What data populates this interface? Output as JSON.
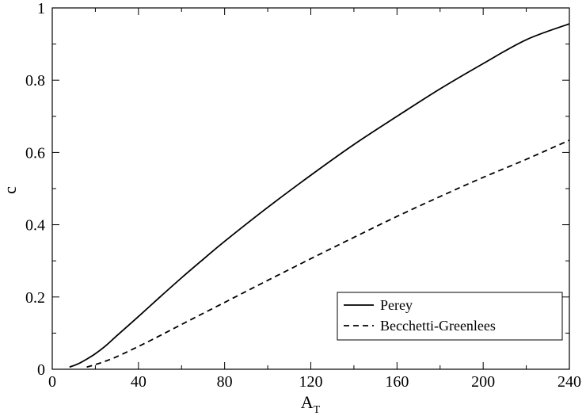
{
  "chart_data": {
    "type": "line",
    "xlabel": "A",
    "xlabel_subscript": "T",
    "ylabel": "c",
    "xlim": [
      0,
      240
    ],
    "ylim": [
      0,
      1
    ],
    "xticks": [
      0,
      40,
      80,
      120,
      160,
      200,
      240
    ],
    "yticks": [
      0,
      0.2,
      0.4,
      0.6,
      0.8,
      1
    ],
    "xtick_labels": [
      "0",
      "40",
      "80",
      "120",
      "160",
      "200",
      "240"
    ],
    "ytick_labels": [
      "0",
      "0.2",
      "0.4",
      "0.6",
      "0.8",
      "1"
    ],
    "grid": false,
    "legend_position": "bottom-right",
    "series": [
      {
        "name": "Perey",
        "style": "solid",
        "x": [
          8,
          12,
          16,
          20,
          25,
          30,
          40,
          50,
          60,
          70,
          80,
          100,
          120,
          140,
          160,
          180,
          200,
          220,
          240
        ],
        "y": [
          0.006,
          0.015,
          0.028,
          0.043,
          0.066,
          0.093,
          0.146,
          0.2,
          0.253,
          0.304,
          0.354,
          0.448,
          0.537,
          0.622,
          0.7,
          0.776,
          0.846,
          0.912,
          0.956
        ]
      },
      {
        "name": "Becchetti-Greenlees",
        "style": "dashed",
        "x": [
          16,
          20,
          25,
          30,
          40,
          50,
          60,
          80,
          100,
          120,
          140,
          160,
          180,
          200,
          220,
          240
        ],
        "y": [
          0.006,
          0.013,
          0.023,
          0.035,
          0.063,
          0.093,
          0.124,
          0.185,
          0.246,
          0.306,
          0.365,
          0.423,
          0.478,
          0.531,
          0.581,
          0.634
        ]
      }
    ]
  }
}
